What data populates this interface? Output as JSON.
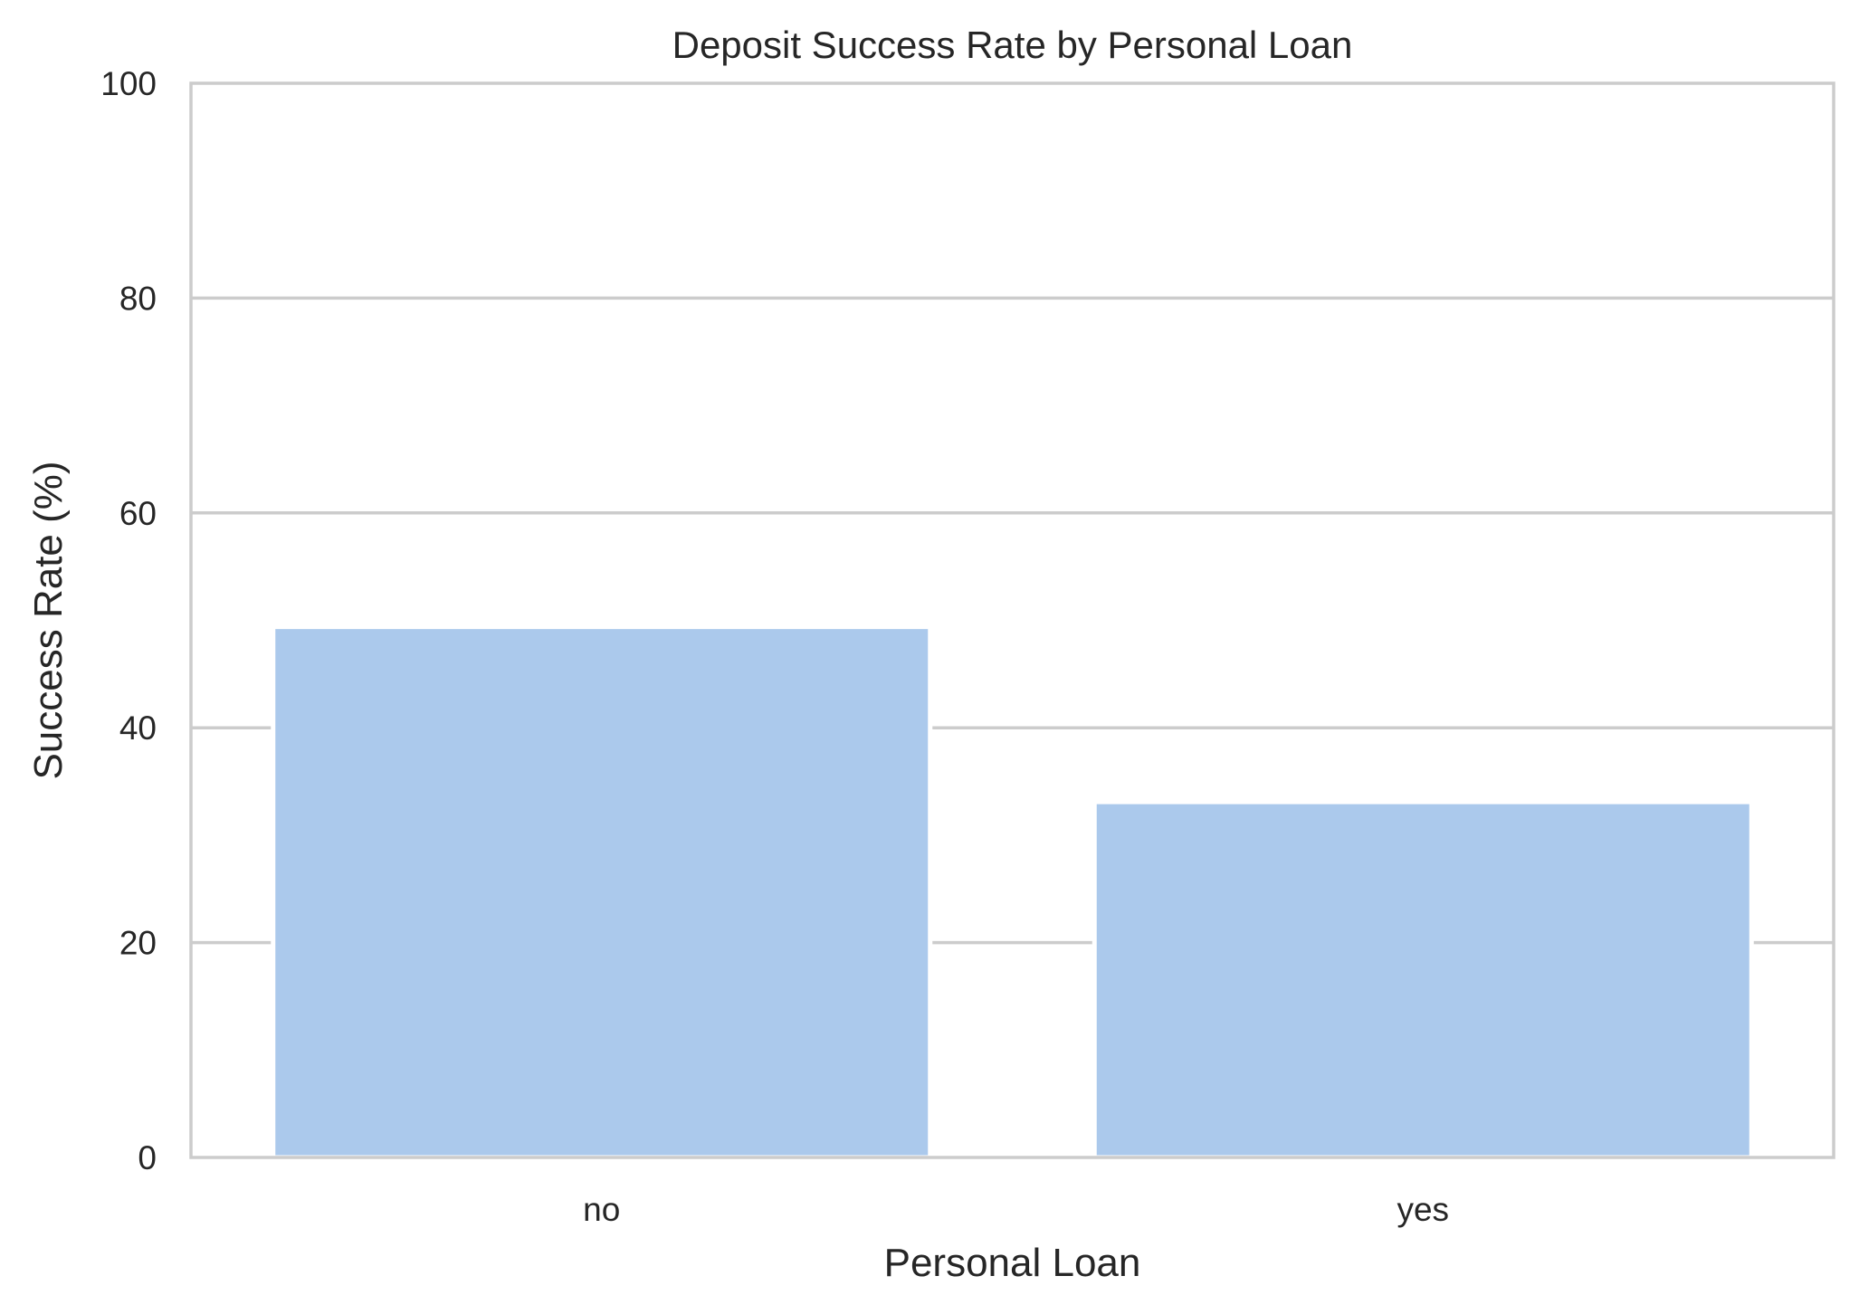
{
  "chart_data": {
    "type": "bar",
    "title": "Deposit Success Rate by Personal Loan",
    "xlabel": "Personal Loan",
    "ylabel": "Success Rate (%)",
    "categories": [
      "no",
      "yes"
    ],
    "values": [
      49.4,
      33.1
    ],
    "ylim": [
      0,
      100
    ],
    "yticks": [
      0,
      20,
      40,
      60,
      80,
      100
    ],
    "ytick_labels": [
      "0",
      "20",
      "40",
      "60",
      "80",
      "100"
    ],
    "grid": "horizontal",
    "bar_color": "#abc9ec",
    "grid_color": "#cccccc",
    "text_color": "#262626"
  }
}
